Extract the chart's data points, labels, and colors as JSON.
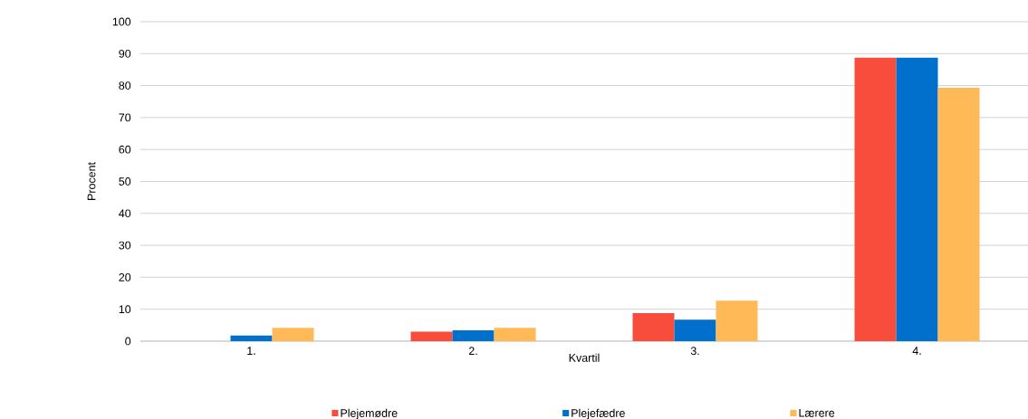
{
  "chart_data": {
    "type": "bar",
    "xlabel": "Kvartil",
    "ylabel": "Procent",
    "categories": [
      "1.",
      "2.",
      "3.",
      "4."
    ],
    "series": [
      {
        "name": "Plejemødre",
        "color": "#f84c3c",
        "values": [
          0,
          3.0,
          8.8,
          88.7
        ]
      },
      {
        "name": "Plejefædre",
        "color": "#0070cc",
        "values": [
          1.8,
          3.4,
          6.7,
          88.7
        ]
      },
      {
        "name": "Lærere",
        "color": "#ffb957",
        "values": [
          4.2,
          4.2,
          12.7,
          79.3
        ]
      }
    ],
    "ylim": [
      0,
      100
    ],
    "yticks": [
      0,
      10,
      20,
      30,
      40,
      50,
      60,
      70,
      80,
      90,
      100
    ],
    "grid": "y",
    "legend": "bottom"
  }
}
